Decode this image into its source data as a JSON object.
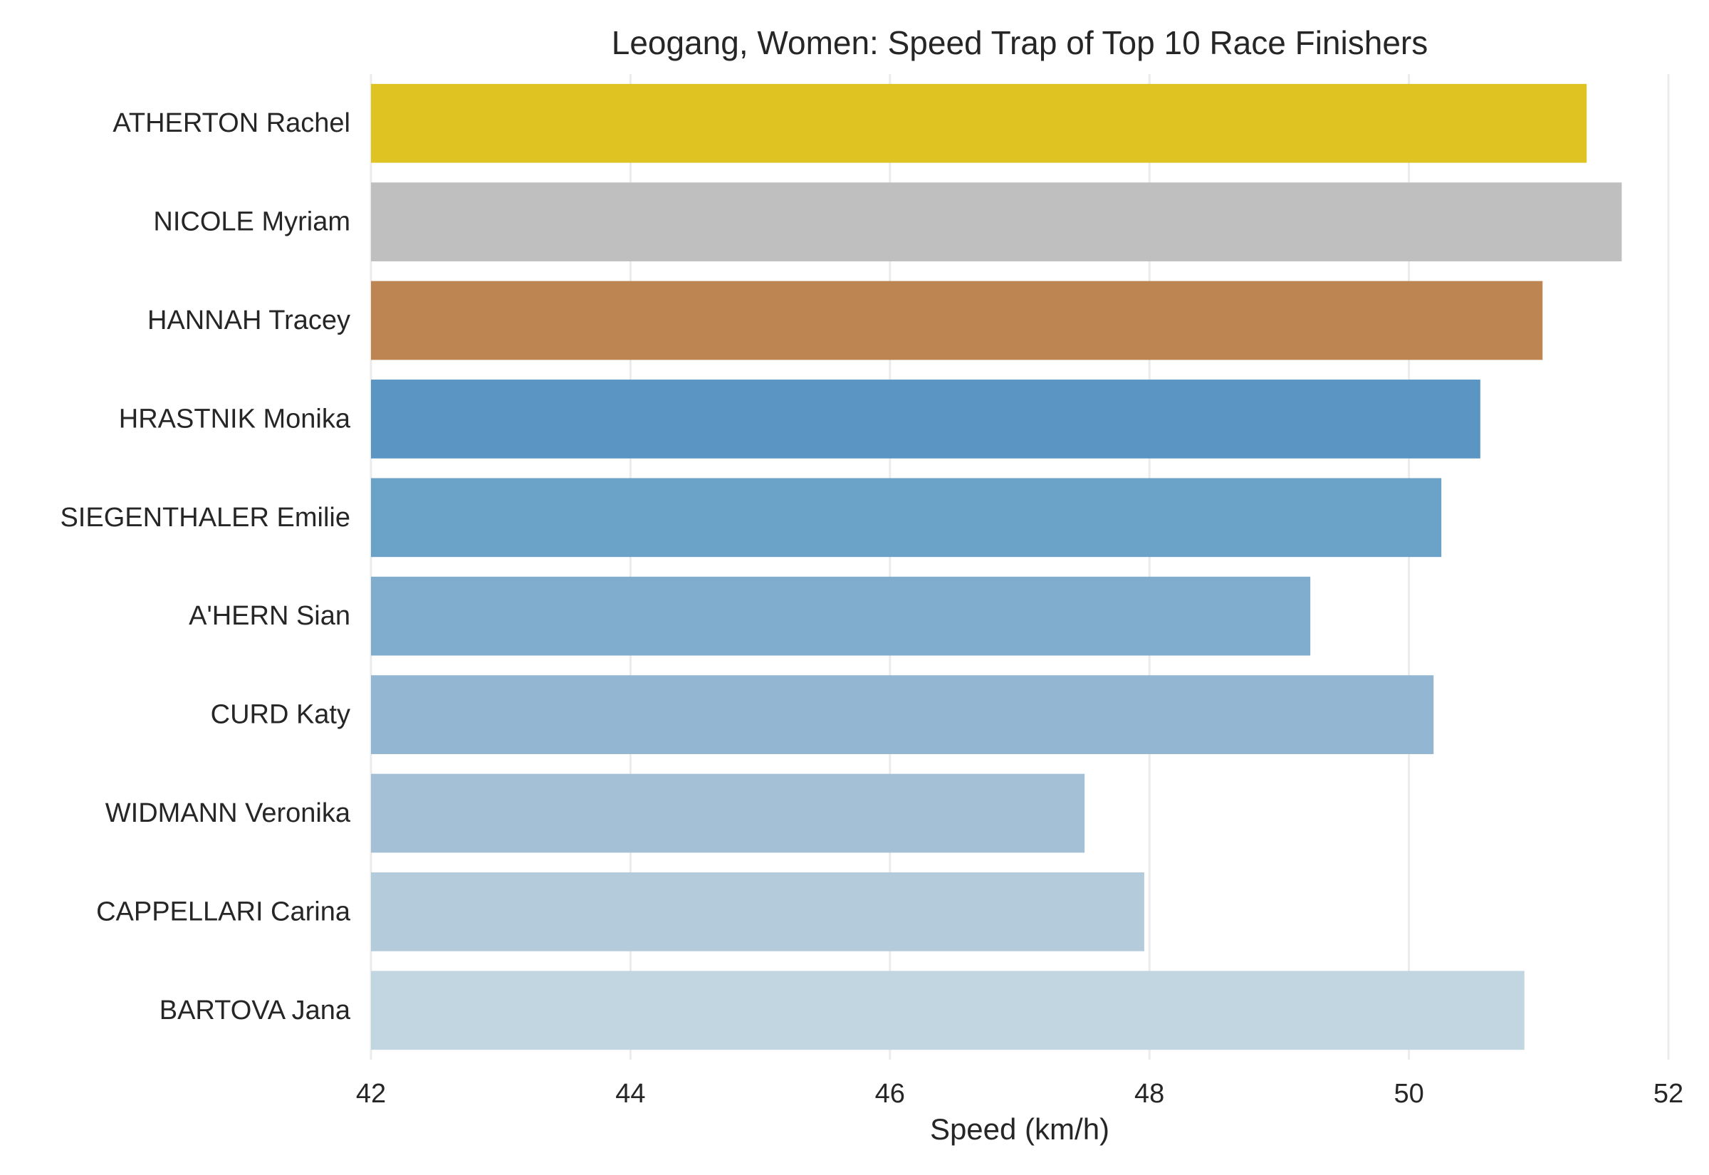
{
  "chart_data": {
    "type": "bar",
    "orientation": "horizontal",
    "title": "Leogang, Women: Speed Trap of Top 10 Race Finishers",
    "xlabel": "Speed (km/h)",
    "ylabel": "",
    "xlim": [
      42,
      52
    ],
    "xticks": [
      "42",
      "44",
      "46",
      "48",
      "50",
      "52"
    ],
    "grid": "vertical",
    "categories": [
      "ATHERTON Rachel",
      "NICOLE Myriam",
      "HANNAH Tracey",
      "HRASTNIK Monika",
      "SIEGENTHALER Emilie",
      "A'HERN Sian",
      "CURD Katy",
      "WIDMANN Veronika",
      "CAPPELLARI Carina",
      "BARTOVA Jana"
    ],
    "values": [
      51.37,
      51.64,
      51.03,
      50.55,
      50.25,
      49.24,
      50.19,
      47.5,
      47.96,
      50.89
    ],
    "colors": [
      "#dec322",
      "#bfbfbf",
      "#bc8552",
      "#5b95c4",
      "#6ba2c8",
      "#80acce",
      "#93b7d2",
      "#a3c0d6",
      "#b3cbdb",
      "#c2d6e1"
    ]
  }
}
